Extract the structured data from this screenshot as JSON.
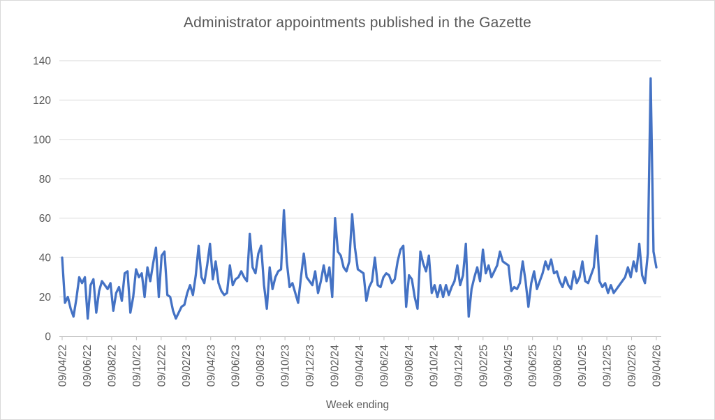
{
  "chart": {
    "title": "Administrator appointments published in the Gazette",
    "x_axis_title": "Week ending",
    "colors": {
      "line": "#4472C4",
      "gridline": "#D9D9D9",
      "axis_line": "#BFBFBF",
      "text": "#595959",
      "border": "#D9D9D9",
      "background": "#FFFFFF"
    }
  },
  "chart_data": {
    "type": "line",
    "title": "Administrator appointments published in the Gazette",
    "xlabel": "Week ending",
    "ylabel": "",
    "ylim": [
      0,
      140
    ],
    "y_ticks": [
      0,
      20,
      40,
      60,
      80,
      100,
      120,
      140
    ],
    "grid": "horizontal",
    "legend_position": "none",
    "x_tick_labels": [
      "09/04/22",
      "09/06/22",
      "09/08/22",
      "09/10/22",
      "09/12/22",
      "09/02/23",
      "09/04/23",
      "09/06/23",
      "09/08/23",
      "09/10/23",
      "09/12/23",
      "09/02/24",
      "09/04/24",
      "09/06/24",
      "09/08/24",
      "09/10/24",
      "09/12/24",
      "09/02/25",
      "09/04/25",
      "09/06/25",
      "09/08/25",
      "09/10/25",
      "09/12/25",
      "09/02/26",
      "09/04/26"
    ],
    "x_frequency": "weekly",
    "x_start_label": "09/04/22",
    "x_end_label": "09/04/26",
    "series": [
      {
        "name": "Administrator appointments",
        "color": "#4472C4",
        "values": [
          40,
          17,
          20,
          14,
          10,
          19,
          30,
          27,
          30,
          9,
          26,
          29,
          12,
          23,
          28,
          26,
          24,
          27,
          13,
          22,
          25,
          18,
          32,
          33,
          12,
          20,
          34,
          30,
          32,
          20,
          35,
          28,
          37,
          45,
          20,
          41,
          43,
          21,
          20,
          13,
          9,
          12,
          15,
          16,
          22,
          26,
          21,
          31,
          46,
          30,
          27,
          36,
          47,
          29,
          38,
          27,
          23,
          21,
          22,
          36,
          26,
          29,
          30,
          33,
          30,
          28,
          52,
          35,
          32,
          42,
          46,
          26,
          14,
          35,
          24,
          30,
          33,
          34,
          64,
          38,
          25,
          27,
          22,
          17,
          30,
          42,
          30,
          28,
          26,
          33,
          22,
          28,
          36,
          28,
          35,
          20,
          60,
          43,
          41,
          35,
          33,
          38,
          62,
          45,
          34,
          33,
          32,
          18,
          25,
          28,
          40,
          26,
          25,
          30,
          32,
          31,
          27,
          29,
          38,
          44,
          46,
          15,
          31,
          29,
          20,
          14,
          43,
          37,
          33,
          41,
          22,
          26,
          20,
          26,
          20,
          26,
          21,
          25,
          28,
          36,
          26,
          31,
          47,
          10,
          24,
          30,
          35,
          28,
          44,
          32,
          36,
          30,
          33,
          36,
          43,
          38,
          37,
          36,
          23,
          25,
          24,
          27,
          38,
          28,
          15,
          27,
          33,
          24,
          28,
          32,
          38,
          34,
          39,
          32,
          33,
          28,
          25,
          30,
          26,
          24,
          33,
          27,
          30,
          38,
          28,
          27,
          31,
          35,
          51,
          28,
          25,
          27,
          22,
          26,
          22,
          24,
          26,
          28,
          30,
          35,
          30,
          38,
          33,
          47,
          31,
          27,
          42,
          131,
          43,
          35
        ]
      }
    ]
  }
}
